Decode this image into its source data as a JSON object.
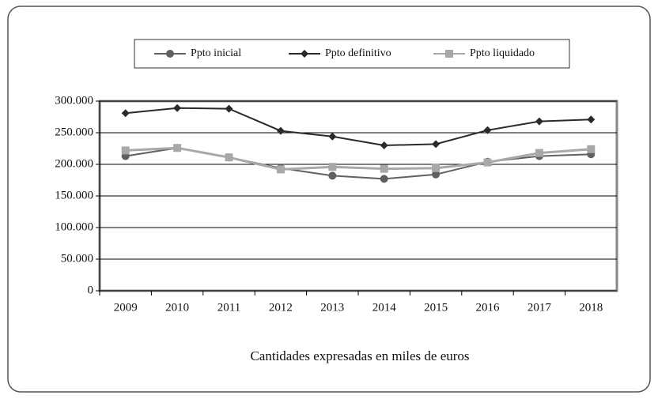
{
  "chart_data": {
    "type": "line",
    "categories": [
      "2009",
      "2010",
      "2011",
      "2012",
      "2013",
      "2014",
      "2015",
      "2016",
      "2017",
      "2018"
    ],
    "series": [
      {
        "name": "Ppto inicial",
        "color": "#606060",
        "marker": "circle",
        "values": [
          213000,
          226000,
          211000,
          194000,
          182000,
          177000,
          184000,
          204000,
          213000,
          216000
        ]
      },
      {
        "name": "Ppto definitivo",
        "color": "#2a2a2a",
        "marker": "diamond",
        "values": [
          281000,
          289000,
          288000,
          253000,
          244000,
          230000,
          232000,
          254000,
          268000,
          271000
        ]
      },
      {
        "name": "Ppto liquidado",
        "color": "#a8a8a8",
        "marker": "square",
        "values": [
          222000,
          226000,
          211000,
          192000,
          196000,
          193000,
          194000,
          203000,
          218000,
          224000
        ]
      }
    ],
    "ylim": [
      0,
      300000
    ],
    "yticks": [
      0,
      {
        "value": 50000,
        "label": "50.000"
      },
      {
        "value": 100000,
        "label": "100.000"
      },
      {
        "value": 150000,
        "label": "150.000"
      },
      {
        "value": 200000,
        "label": "200.000"
      },
      {
        "value": 250000,
        "label": "250.000"
      },
      {
        "value": 300000,
        "label": "300.000"
      }
    ],
    "grid": true,
    "legend": "top",
    "xlabel": "Cantidades expresadas en miles  de euros"
  }
}
